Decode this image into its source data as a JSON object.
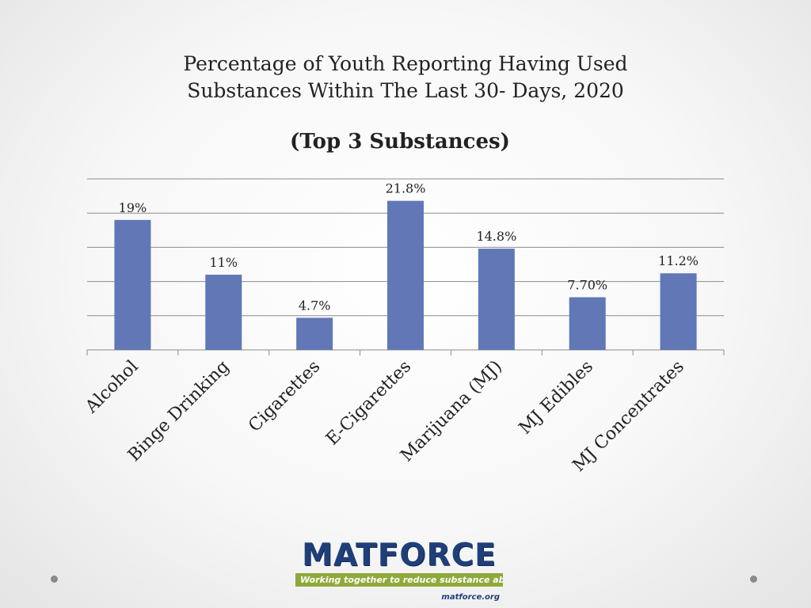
{
  "chart_data": {
    "type": "bar",
    "title_lines": [
      "Percentage of Youth Reporting Having Used",
      "Substances Within The Last 30- Days, 2020"
    ],
    "subtitle": "(Top 3 Substances)",
    "categories": [
      "Alcohol",
      "Binge Drinking",
      "Cigarettes",
      "E-Cigarettes",
      "Marijuana (MJ)",
      "MJ Edibles",
      "MJ Concentrates"
    ],
    "values": [
      19,
      11,
      4.7,
      21.8,
      14.8,
      7.7,
      11.2
    ],
    "data_labels": [
      "19%",
      "11%",
      "4.7%",
      "21.8%",
      "14.8%",
      "7.70%",
      "11.2%"
    ],
    "ylim": [
      0,
      25
    ],
    "grid": true,
    "legend": "none",
    "bar_color": "#6177b6"
  },
  "logo": {
    "name": "MATFORCE",
    "tagline": "Working together to reduce substance abuse",
    "url": "matforce.org",
    "colors": {
      "primary": "#1f3f7a",
      "accent": "#8fa93a"
    }
  }
}
